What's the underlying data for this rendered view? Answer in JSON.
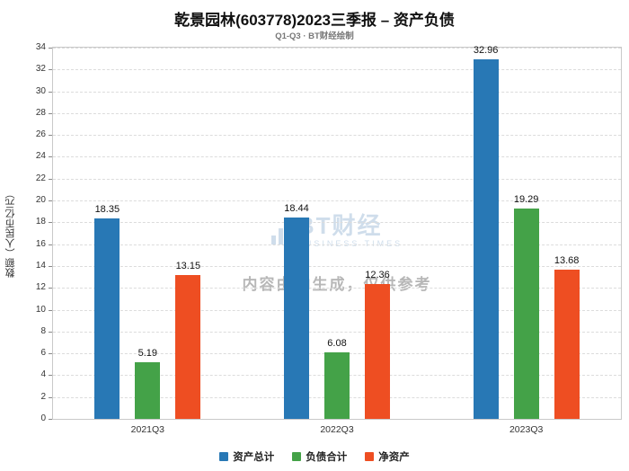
{
  "header": {
    "title": "乾景园林(603778)2023三季报 – 资产负债",
    "subtitle": "Q1-Q3 · BT财经绘制"
  },
  "watermark": {
    "brand": "BT财经",
    "brand_sub": "BUSINESS TIMES",
    "disclaimer": "内容由AI生成，仅供参考"
  },
  "chart_data": {
    "type": "bar",
    "categories": [
      "2021Q3",
      "2022Q3",
      "2023Q3"
    ],
    "series": [
      {
        "name": "资产总计",
        "color": "#2878b5",
        "values": [
          18.35,
          18.44,
          32.96
        ]
      },
      {
        "name": "负债合计",
        "color": "#44a248",
        "values": [
          5.19,
          6.08,
          19.29
        ]
      },
      {
        "name": "净资产",
        "color": "#ee4e22",
        "values": [
          13.15,
          12.36,
          13.68
        ]
      }
    ],
    "title": "乾景园林(603778)2023三季报 – 资产负债",
    "xlabel": "",
    "ylabel": "数额（人民币亿元）",
    "ylim": [
      0,
      34
    ],
    "ytick_step": 2,
    "grid": true,
    "legend_position": "bottom"
  }
}
